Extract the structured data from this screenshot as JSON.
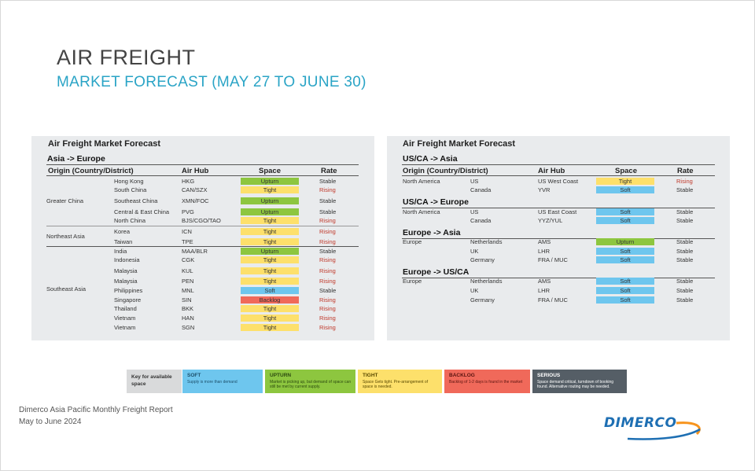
{
  "header": {
    "title": "AIR FREIGHT",
    "subtitle": "MARKET FORECAST (MAY 27 TO JUNE 30)"
  },
  "left_panel": {
    "title": "Air Freight Market Forecast",
    "section": "Asia -> Europe",
    "headers": {
      "origin": "Origin (Country/District)",
      "hub": "Air Hub",
      "space": "Space",
      "rate": "Rate"
    },
    "groups": [
      "Greater China",
      "Northeast Asia",
      "Southeast Asia"
    ],
    "rows": [
      {
        "country": "Hong Kong",
        "hub": "HKG",
        "space": "Upturn",
        "rate": "Stable"
      },
      {
        "country": "South China",
        "hub": "CAN/SZX",
        "space": "Tight",
        "rate": "Rising"
      },
      {
        "country": "Southeast China",
        "hub": "XMN/FOC",
        "space": "Upturn",
        "rate": "Stable"
      },
      {
        "country": "Central & East China",
        "hub": "PVG",
        "space": "Upturn",
        "rate": "Stable"
      },
      {
        "country": "North China",
        "hub": "BJS/CGO/TAO",
        "space": "Tight",
        "rate": "Rising"
      },
      {
        "country": "Korea",
        "hub": "ICN",
        "space": "Tight",
        "rate": "Rising"
      },
      {
        "country": "Taiwan",
        "hub": "TPE",
        "space": "Tight",
        "rate": "Rising"
      },
      {
        "country": "India",
        "hub": "MAA/BLR",
        "space": "Upturn",
        "rate": "Stable"
      },
      {
        "country": "Indonesia",
        "hub": "CGK",
        "space": "Tight",
        "rate": "Rising"
      },
      {
        "country": "Malaysia",
        "hub": "KUL",
        "space": "Tight",
        "rate": "Rising"
      },
      {
        "country": "Malaysia",
        "hub": "PEN",
        "space": "Tight",
        "rate": "Rising"
      },
      {
        "country": "Philippines",
        "hub": "MNL",
        "space": "Soft",
        "rate": "Stable"
      },
      {
        "country": "Singapore",
        "hub": "SIN",
        "space": "Backlog",
        "rate": "Rising"
      },
      {
        "country": "Thailand",
        "hub": "BKK",
        "space": "Tight",
        "rate": "Rising"
      },
      {
        "country": "Vietnam",
        "hub": "HAN",
        "space": "Tight",
        "rate": "Rising"
      },
      {
        "country": "Vietnam",
        "hub": "SGN",
        "space": "Tight",
        "rate": "Rising"
      }
    ]
  },
  "right_panel": {
    "title": "Air Freight Market Forecast",
    "headers": {
      "origin": "Origin (Country/District)",
      "hub": "Air Hub",
      "space": "Space",
      "rate": "Rate"
    },
    "sections": [
      {
        "name": "US/CA -> Asia",
        "region": "North America",
        "rows": [
          {
            "country": "US",
            "hub": "US West Coast",
            "space": "Tight",
            "rate": "Rising"
          },
          {
            "country": "Canada",
            "hub": "YVR",
            "space": "Soft",
            "rate": "Stable"
          }
        ]
      },
      {
        "name": "US/CA -> Europe",
        "region": "North America",
        "rows": [
          {
            "country": "US",
            "hub": "US East Coast",
            "space": "Soft",
            "rate": "Stable"
          },
          {
            "country": "Canada",
            "hub": "YYZ/YUL",
            "space": "Soft",
            "rate": "Stable"
          }
        ]
      },
      {
        "name": "Europe -> Asia",
        "region": "Europe",
        "rows": [
          {
            "country": "Netherlands",
            "hub": "AMS",
            "space": "Upturn",
            "rate": "Stable"
          },
          {
            "country": "UK",
            "hub": "LHR",
            "space": "Soft",
            "rate": "Stable"
          },
          {
            "country": "Germany",
            "hub": "FRA / MUC",
            "space": "Soft",
            "rate": "Stable"
          }
        ]
      },
      {
        "name": "Europe -> US/CA",
        "region": "Europe",
        "rows": [
          {
            "country": "Netherlands",
            "hub": "AMS",
            "space": "Soft",
            "rate": "Stable"
          },
          {
            "country": "UK",
            "hub": "LHR",
            "space": "Soft",
            "rate": "Stable"
          },
          {
            "country": "Germany",
            "hub": "FRA / MUC",
            "space": "Soft",
            "rate": "Stable"
          }
        ]
      }
    ]
  },
  "colors": {
    "Upturn": "#8dc63f",
    "Tight": "#fde06b",
    "Soft": "#6ec6ee",
    "Backlog": "#f0695a",
    "Serious": "#555e66"
  },
  "key": {
    "label": "Key for available space",
    "items": [
      {
        "name": "SOFT",
        "desc": "Supply is more than demand",
        "color": "#6ec6ee",
        "text": "#1c4f6a"
      },
      {
        "name": "UPTURN",
        "desc": "Market is picking up, but demand of space can still be met by current supply.",
        "color": "#8dc63f",
        "text": "#2c4a10"
      },
      {
        "name": "TIGHT",
        "desc": "Space Gets tight. Pre-arrangement of space is needed.",
        "color": "#fde06b",
        "text": "#5a4a00"
      },
      {
        "name": "BACKLOG",
        "desc": "Backlog of 1-2 days is found in the market",
        "color": "#f0695a",
        "text": "#5a1410"
      },
      {
        "name": "SERIOUS",
        "desc": "Space demand critical, turndown of booking found. Alternative routing may be needed.",
        "color": "#555e66",
        "text": "#ffffff"
      }
    ]
  },
  "footer": {
    "line1": "Dimerco Asia Pacific Monthly Freight Report",
    "line2": "May to June 2024",
    "logo": "DIMERCO"
  }
}
